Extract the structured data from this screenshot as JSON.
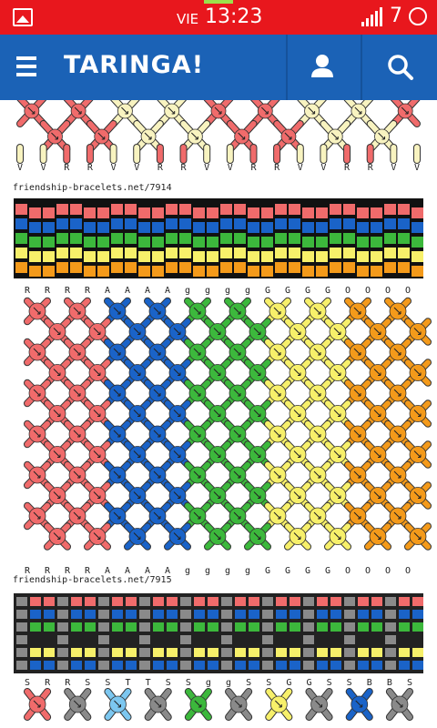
{
  "status": {
    "day": "VIE",
    "time": "13:23",
    "battery_text": "7"
  },
  "appbar": {
    "logo": "TARINGA!",
    "menu_icon": "hamburger-icon",
    "user_icon": "user-icon",
    "search_icon": "search-icon"
  },
  "patterns": [
    {
      "caption": "",
      "bottom_letters": [
        "V",
        "V",
        "R",
        "R",
        "V",
        "V",
        "R",
        "R",
        "V",
        "V",
        "R",
        "R",
        "V",
        "V",
        "R",
        "R",
        "V",
        "V"
      ]
    },
    {
      "caption": "friendship-bracelets.net/7914",
      "top_letters": [
        "R",
        "R",
        "R",
        "R",
        "A",
        "A",
        "A",
        "A",
        "g",
        "g",
        "g",
        "g",
        "G",
        "G",
        "G",
        "G",
        "O",
        "O",
        "O",
        "O"
      ],
      "bottom_letters": [
        "R",
        "R",
        "R",
        "R",
        "A",
        "A",
        "A",
        "A",
        "g",
        "g",
        "g",
        "g",
        "G",
        "G",
        "G",
        "G",
        "O",
        "O",
        "O",
        "O"
      ]
    },
    {
      "caption": "friendship-bracelets.net/7915",
      "top_letters": [
        "S",
        "R",
        "R",
        "S",
        "S",
        "T",
        "T",
        "S",
        "S",
        "g",
        "g",
        "S",
        "S",
        "G",
        "G",
        "S",
        "S",
        "B",
        "B",
        "S"
      ]
    }
  ],
  "colors": {
    "status_bar": "#e8171d",
    "app_bar": "#1b62b6",
    "red": "#f06b6b",
    "blue": "#1a63c8",
    "green": "#3cb83c",
    "yellow": "#f7f06a",
    "orange": "#f49a1a",
    "cream": "#f8f3c0",
    "gray": "#8a8a8a",
    "lightblue": "#7cc7f0"
  }
}
